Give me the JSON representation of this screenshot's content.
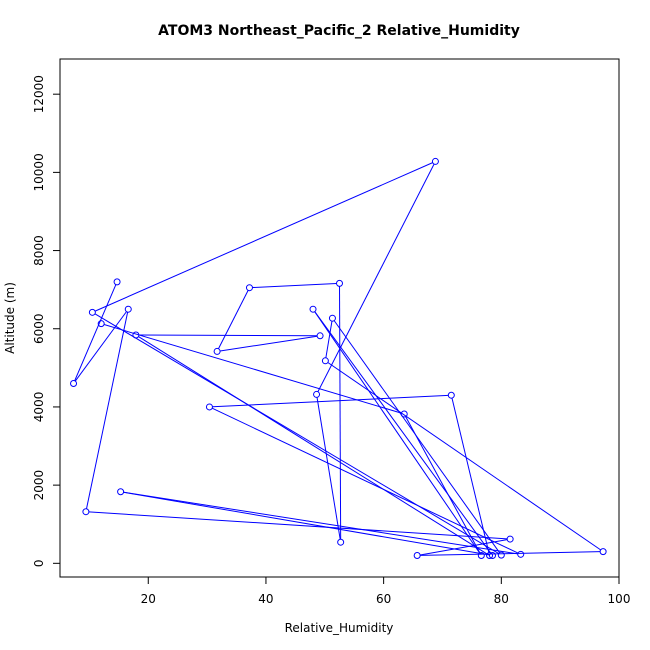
{
  "chart_data": {
    "type": "line",
    "title": "ATOM3 Northeast_Pacific_2 Relative_Humidity",
    "xlabel": "Relative_Humidity",
    "ylabel": "Altitude (m)",
    "xlim": [
      5,
      100
    ],
    "ylim": [
      -350,
      12900
    ],
    "xticks": [
      20,
      40,
      60,
      80,
      100
    ],
    "yticks": [
      0,
      2000,
      4000,
      6000,
      8000,
      10000,
      12000
    ],
    "grid": false,
    "legend": "none",
    "series_color": "#0000ff",
    "series": [
      {
        "markers": "open-circle",
        "x": [
          14.7,
          7.3,
          16.6,
          9.4,
          81.5,
          65.7,
          97.3,
          50.1,
          51.3,
          80.0,
          10.5,
          68.8,
          48.6,
          52.7,
          52.5,
          37.2,
          31.7,
          49.2,
          17.9,
          78.0,
          71.5,
          30.4,
          83.3,
          15.3,
          78.5,
          48.0,
          76.6,
          63.5,
          12.0
        ],
        "y": [
          7200,
          4600,
          6500,
          1320,
          620,
          200,
          300,
          5180,
          6270,
          210,
          6420,
          10280,
          4320,
          540,
          7160,
          7050,
          5420,
          5820,
          5840,
          200,
          4300,
          4000,
          230,
          1830,
          200,
          6500,
          200,
          3820,
          6130
        ]
      }
    ]
  }
}
